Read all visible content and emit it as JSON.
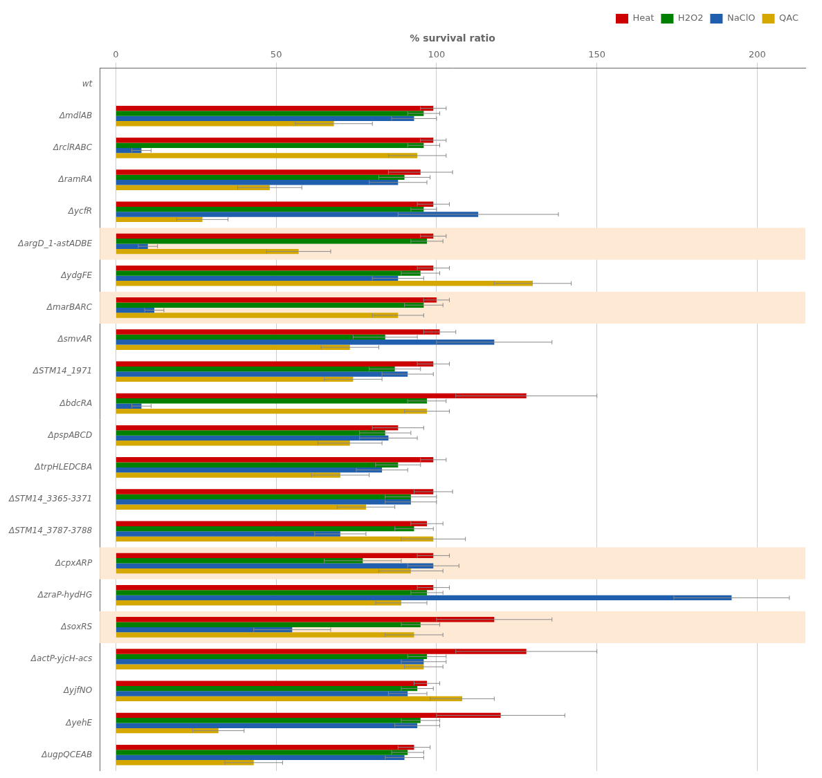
{
  "chart_data": {
    "type": "bar",
    "orientation": "horizontal",
    "x_label": "% survival ratio",
    "categories": [
      "wt",
      "ΔmdlAB",
      "ΔrclRABC",
      "ΔramRA",
      "ΔycfR",
      "ΔargD_1-astADBE",
      "ΔydgFE",
      "ΔmarBARC",
      "ΔsmvAR",
      "ΔSTM14_1971",
      "ΔbdcRA",
      "ΔpspABCD",
      "ΔtrpHLEDCBA",
      "ΔSTM14_3365-3371",
      "ΔSTM14_3787-3788",
      "ΔcpxARP",
      "ΔzraP-hydHG",
      "ΔsoxRS",
      "ΔactP-yjcH-acs",
      "ΔyjfNO",
      "ΔyehE",
      "ΔugpQCEAB"
    ],
    "series": [
      {
        "name": "Heat",
        "color": "#CC0000",
        "values": [
          null,
          99,
          99,
          95,
          99,
          99,
          99,
          100,
          101,
          99,
          128,
          88,
          99,
          99,
          97,
          99,
          99,
          118,
          128,
          97,
          120,
          93
        ],
        "errors": [
          null,
          4,
          4,
          10,
          5,
          4,
          5,
          4,
          5,
          5,
          22,
          8,
          4,
          6,
          5,
          5,
          5,
          18,
          22,
          4,
          20,
          5
        ]
      },
      {
        "name": "H2O2",
        "color": "#008000",
        "values": [
          null,
          96,
          96,
          90,
          96,
          97,
          95,
          96,
          84,
          87,
          97,
          84,
          88,
          92,
          93,
          77,
          97,
          95,
          97,
          94,
          95,
          91
        ],
        "errors": [
          null,
          5,
          5,
          8,
          4,
          5,
          6,
          6,
          10,
          8,
          6,
          8,
          7,
          8,
          6,
          12,
          5,
          6,
          6,
          5,
          6,
          5
        ]
      },
      {
        "name": "NaClO",
        "color": "#1F5FAD",
        "values": [
          null,
          93,
          8,
          88,
          113,
          10,
          88,
          12,
          118,
          91,
          8,
          85,
          83,
          92,
          70,
          99,
          192,
          55,
          96,
          91,
          94,
          90
        ],
        "errors": [
          null,
          7,
          3,
          9,
          25,
          3,
          8,
          3,
          18,
          8,
          3,
          9,
          8,
          8,
          8,
          8,
          18,
          12,
          7,
          6,
          7,
          6
        ]
      },
      {
        "name": "QAC",
        "color": "#D4A800",
        "values": [
          null,
          68,
          94,
          48,
          27,
          57,
          130,
          88,
          73,
          74,
          97,
          73,
          70,
          78,
          99,
          92,
          89,
          93,
          96,
          108,
          32,
          43
        ],
        "errors": [
          null,
          12,
          9,
          10,
          8,
          10,
          12,
          8,
          9,
          9,
          7,
          10,
          9,
          9,
          10,
          10,
          8,
          9,
          6,
          10,
          8,
          9
        ]
      }
    ],
    "highlighted": [
      "ΔargD_1-astADBE",
      "ΔmarBARC",
      "ΔcpxARP",
      "ΔsoxRS"
    ],
    "highlight_color": "#FEE9D5",
    "xlim": [
      -5,
      215
    ],
    "xticks": [
      0,
      50,
      100,
      150,
      200
    ],
    "grid": true,
    "legend": "upper right"
  }
}
